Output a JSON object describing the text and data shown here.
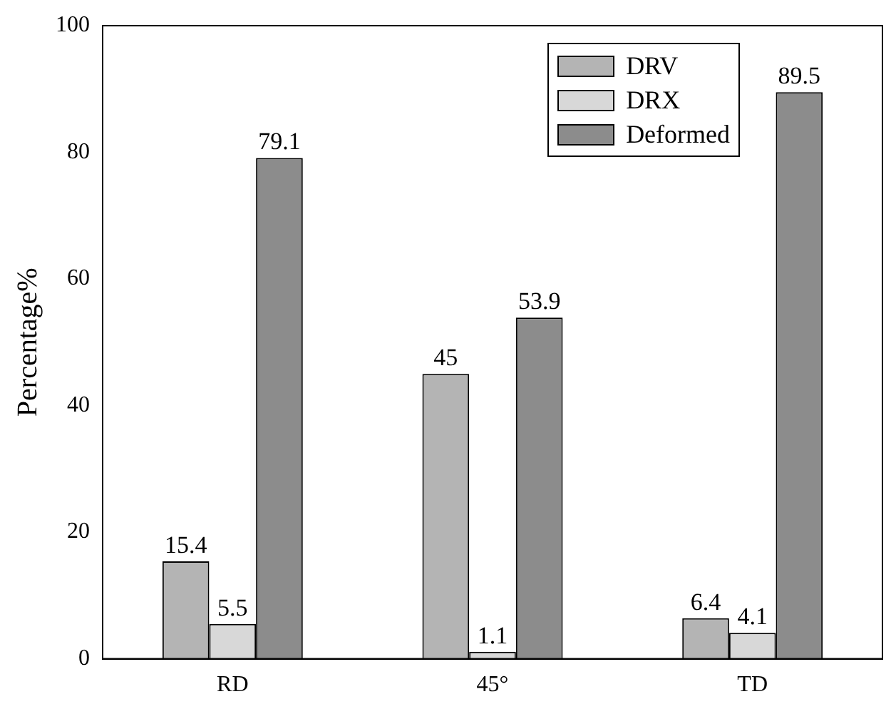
{
  "chart_data": {
    "type": "bar",
    "ylabel": "Percentage%",
    "categories": [
      "RD",
      "45°",
      "TD"
    ],
    "series": [
      {
        "name": "DRV",
        "color": "#b4b4b4",
        "values": [
          15.4,
          45,
          6.4
        ]
      },
      {
        "name": "DRX",
        "color": "#d8d8d8",
        "values": [
          5.5,
          1.1,
          4.1
        ]
      },
      {
        "name": "Deformed",
        "color": "#8c8c8c",
        "values": [
          79.1,
          53.9,
          89.5
        ]
      }
    ],
    "ylim": [
      0,
      100
    ],
    "yticks": [
      0,
      20,
      40,
      60,
      80,
      100
    ],
    "grid": false,
    "legend": "top right",
    "data_labels": true
  }
}
